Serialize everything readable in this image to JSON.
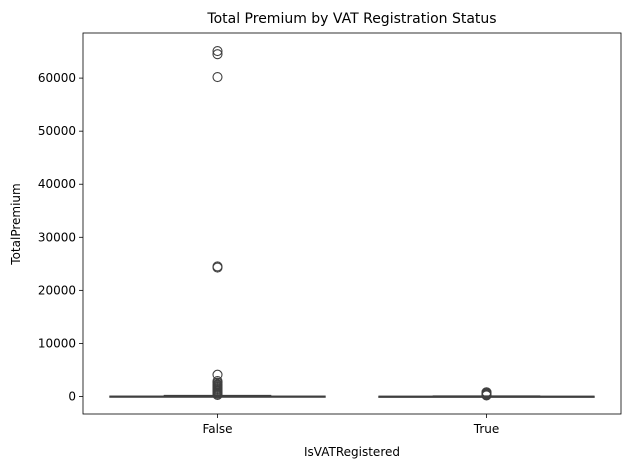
{
  "chart_data": {
    "type": "box",
    "title": "Total Premium by VAT Registration Status",
    "xlabel": "IsVATRegistered",
    "ylabel": "TotalPremium",
    "categories": [
      "False",
      "True"
    ],
    "ylim": [
      -3300,
      68500
    ],
    "yticks": [
      0,
      10000,
      20000,
      30000,
      40000,
      50000,
      60000
    ],
    "grid": false,
    "boxes": [
      {
        "category": "False",
        "whisker_low": 0,
        "q1": 0,
        "median": 0,
        "q3": 60,
        "whisker_high": 180,
        "outliers": [
          300,
          500,
          700,
          900,
          1100,
          1300,
          1500,
          1700,
          1900,
          2100,
          2300,
          2600,
          2900,
          4100,
          24300,
          24500,
          60200,
          64500,
          65100
        ]
      },
      {
        "category": "True",
        "whisker_low": 0,
        "q1": 0,
        "median": 0,
        "q3": 40,
        "whisker_high": 100,
        "outliers": [
          200,
          350,
          500,
          650,
          800
        ]
      }
    ],
    "colors": {
      "box_fill": "#3b75af",
      "line": "#3f3f3f",
      "outlier_edge": "#3f3f3f"
    }
  }
}
